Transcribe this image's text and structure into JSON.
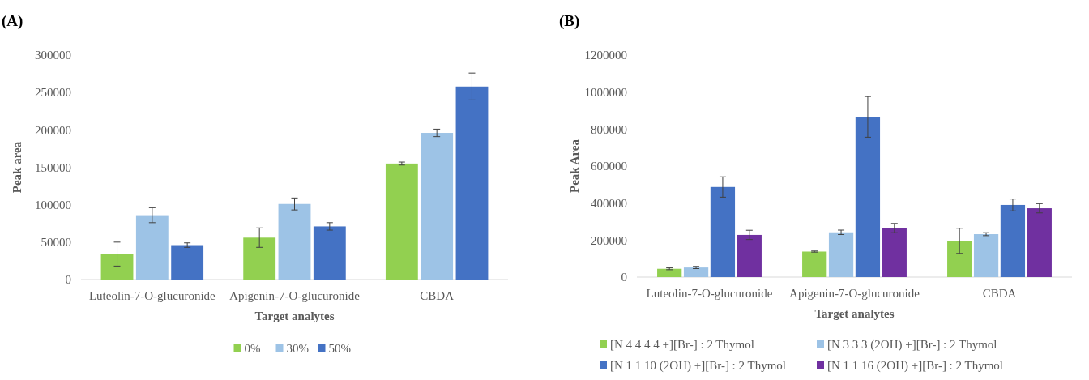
{
  "chart_data": [
    {
      "type": "bar",
      "title": "(A)",
      "xlabel": "Target analytes",
      "ylabel": "Peak area",
      "categories": [
        "Luteolin-7-O-glucuronide",
        "Apigenin-7-O-glucuronide",
        "CBDA"
      ],
      "ylim": [
        0,
        300000
      ],
      "yticks": [
        0,
        50000,
        100000,
        150000,
        200000,
        250000,
        300000
      ],
      "legend": "bottom",
      "series": [
        {
          "name": "0%",
          "color": "#92d050",
          "values": [
            34000,
            56000,
            155000
          ],
          "errors": [
            16000,
            13000,
            2000
          ]
        },
        {
          "name": "30%",
          "color": "#9dc3e6",
          "values": [
            86000,
            101000,
            196000
          ],
          "errors": [
            10000,
            8000,
            5000
          ]
        },
        {
          "name": "50%",
          "color": "#4472c4",
          "values": [
            46000,
            71000,
            258000
          ],
          "errors": [
            3000,
            5000,
            18000
          ]
        }
      ]
    },
    {
      "type": "bar",
      "title": "(B)",
      "xlabel": "Target analytes",
      "ylabel": "Peak Area",
      "categories": [
        "Luteolin-7-O-glucuronide",
        "Apigenin-7-O-glucuronide",
        "CBDA"
      ],
      "ylim": [
        0,
        1200000
      ],
      "yticks": [
        0,
        200000,
        400000,
        600000,
        800000,
        1000000,
        1200000
      ],
      "legend": "bottom",
      "series": [
        {
          "name": "[N 4 4 4 4 +][Br-] : 2 Thymol",
          "color": "#92d050",
          "values": [
            45000,
            138000,
            196000
          ],
          "errors": [
            5000,
            3000,
            68000
          ]
        },
        {
          "name": "[N 3 3 3 (2OH) +][Br-] : 2 Thymol",
          "color": "#9dc3e6",
          "values": [
            52000,
            242000,
            232000
          ],
          "errors": [
            6000,
            12000,
            8000
          ]
        },
        {
          "name": "[N 1 1 10 (2OH) +][Br-] : 2 Thymol",
          "color": "#4472c4",
          "values": [
            487000,
            866000,
            390000
          ],
          "errors": [
            55000,
            110000,
            32000
          ]
        },
        {
          "name": "[N 1 1 16 (2OH) +][Br-] : 2 Thymol",
          "color": "#7030a0",
          "values": [
            228000,
            265000,
            372000
          ],
          "errors": [
            25000,
            25000,
            25000
          ]
        }
      ]
    }
  ]
}
